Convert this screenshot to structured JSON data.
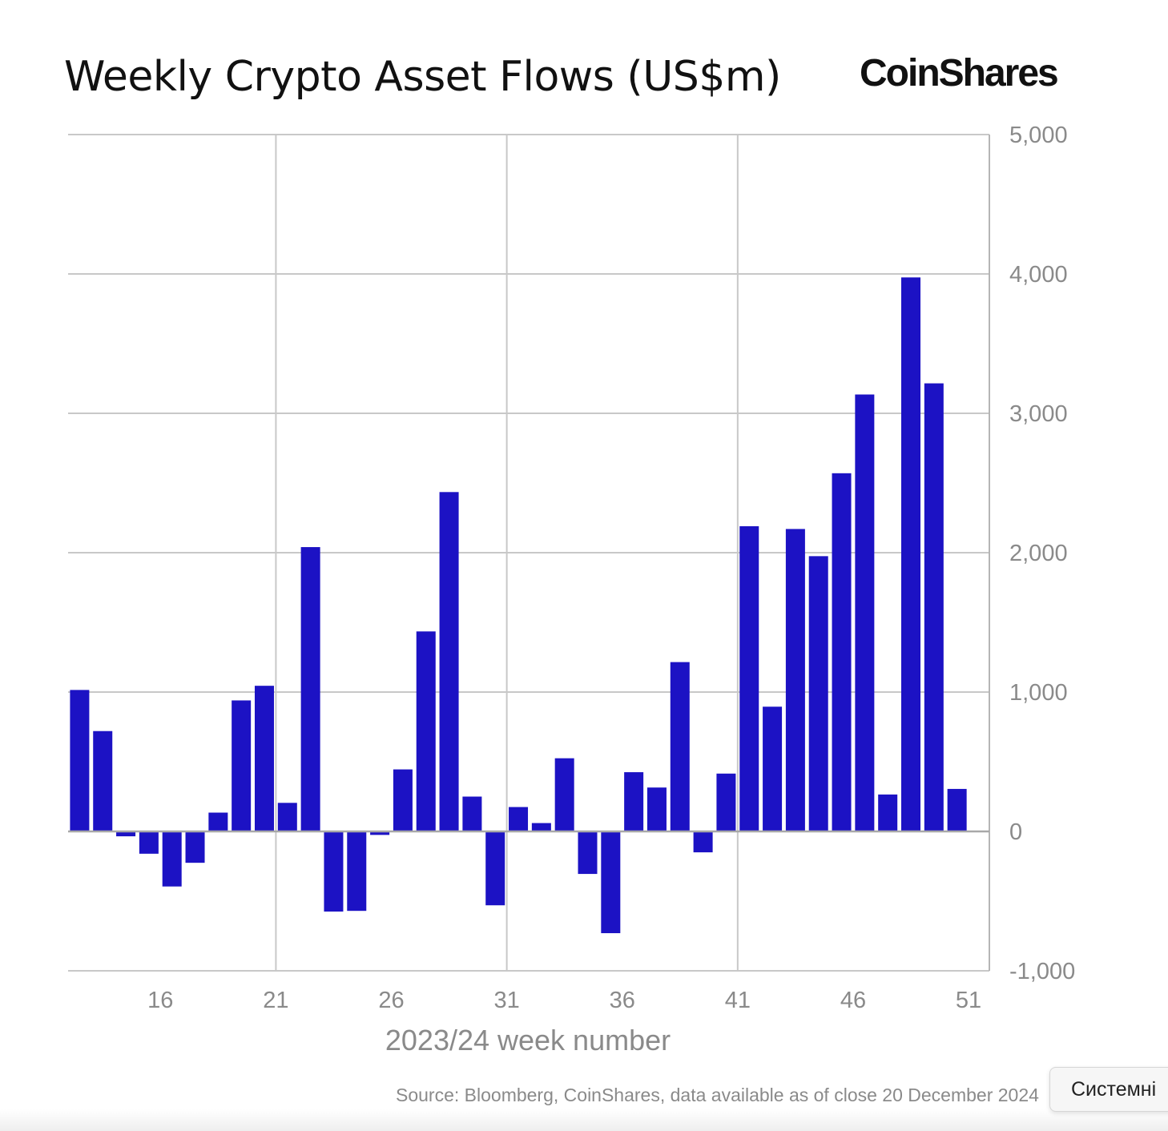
{
  "header": {
    "title": "Weekly Crypto Asset Flows (US$m)",
    "brand": "CoinShares"
  },
  "footer": {
    "source": "Source: Bloomberg, CoinShares, data available as of close 20 December 2024"
  },
  "popup": {
    "label": "Системні"
  },
  "colors": {
    "bar": "#1c12c4",
    "grid": "#c8c8c8",
    "tick_text": "#8a8a8a"
  },
  "chart_data": {
    "type": "bar",
    "title": "Weekly Crypto Asset Flows (US$m)",
    "xlabel": "2023/24 week number",
    "ylabel": "",
    "ylim": [
      -1000,
      5000
    ],
    "y_ticks": [
      "5,000",
      "4,000",
      "3,000",
      "2,000",
      "1,000",
      "0",
      "-1,000"
    ],
    "y_tick_values": [
      5000,
      4000,
      3000,
      2000,
      1000,
      0,
      -1000
    ],
    "x_ticks": [
      "16",
      "21",
      "26",
      "31",
      "36",
      "41",
      "46",
      "51"
    ],
    "x_tick_values": [
      16,
      21,
      26,
      31,
      36,
      41,
      46,
      51
    ],
    "vertical_gridlines_at_week": [
      21,
      31,
      41
    ],
    "grid": true,
    "x": [
      12.5,
      13.5,
      14.5,
      15.5,
      16.5,
      17.5,
      18.5,
      19.5,
      20.5,
      21.5,
      22.5,
      23.5,
      24.5,
      25.5,
      26.5,
      27.5,
      28.5,
      29.5,
      30.5,
      31.5,
      32.5,
      33.5,
      34.5,
      35.5,
      36.5,
      37.5,
      38.5,
      39.5,
      40.5,
      41.5,
      42.5,
      43.5,
      44.5,
      45.5,
      46.5,
      47.5,
      48.5,
      49.5,
      50.5,
      51.5
    ],
    "values": [
      1015,
      720,
      -35,
      -160,
      -395,
      -225,
      135,
      940,
      1045,
      205,
      2040,
      -575,
      -570,
      -25,
      445,
      1435,
      2435,
      250,
      -530,
      175,
      60,
      525,
      -305,
      -730,
      425,
      315,
      1215,
      -150,
      415,
      2190,
      895,
      2170,
      1975,
      2570,
      3135,
      265,
      3975,
      3215,
      305,
      0
    ]
  }
}
